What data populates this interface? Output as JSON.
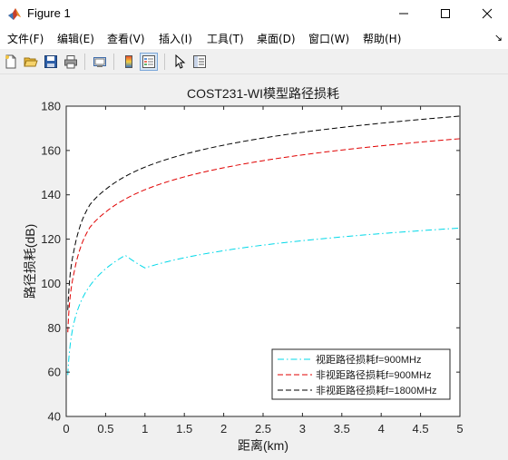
{
  "window": {
    "title": "Figure 1"
  },
  "menu": {
    "items": [
      "文件(F)",
      "编辑(E)",
      "查看(V)",
      "插入(I)",
      "工具(T)",
      "桌面(D)",
      "窗口(W)",
      "帮助(H)"
    ],
    "extra": "↘"
  },
  "toolbar": {
    "buttons": [
      {
        "name": "new-figure",
        "icon": "new-file-icon"
      },
      {
        "name": "open-file",
        "icon": "folder-open-icon"
      },
      {
        "name": "save-figure",
        "icon": "save-icon"
      },
      {
        "name": "print-figure",
        "icon": "printer-icon"
      },
      {
        "name": "link-plot",
        "icon": "link-plot-icon"
      },
      {
        "name": "insert-colorbar",
        "icon": "colorbar-icon"
      },
      {
        "name": "insert-legend",
        "icon": "legend-icon"
      },
      {
        "name": "edit-plot",
        "icon": "pointer-icon"
      },
      {
        "name": "property-inspector",
        "icon": "property-inspector-icon"
      }
    ]
  },
  "chart_data": {
    "type": "line",
    "title": "COST231-WI模型路径损耗",
    "xlabel": "距离(km)",
    "ylabel": "路径损耗(dB)",
    "xlim": [
      0,
      5
    ],
    "ylim": [
      40,
      180
    ],
    "xticks": [
      0,
      0.5,
      1,
      1.5,
      2,
      2.5,
      3,
      3.5,
      4,
      4.5,
      5
    ],
    "xtick_labels": [
      "0",
      "0.5",
      "1",
      "1.5",
      "2",
      "2.5",
      "3",
      "3.5",
      "4",
      "4.5",
      "5"
    ],
    "yticks": [
      40,
      60,
      80,
      100,
      120,
      140,
      160,
      180
    ],
    "ytick_labels": [
      "40",
      "60",
      "80",
      "100",
      "120",
      "140",
      "160",
      "180"
    ],
    "grid": false,
    "legend_position": "bottom-right",
    "x": [
      0.02,
      0.05,
      0.1,
      0.2,
      0.3,
      0.5,
      0.75,
      1,
      1.5,
      2,
      2.5,
      3,
      3.5,
      4,
      4.5,
      5
    ],
    "series": [
      {
        "name": "视距路径损耗f=900MHz",
        "color": "#00d8e8",
        "style": "dashdot",
        "values": [
          58.7,
          72.2,
          82.5,
          92.9,
          98.9,
          106.6,
          112.7,
          107.0,
          111.6,
          114.8,
          117.3,
          119.3,
          121.0,
          122.5,
          123.8,
          125.0
        ]
      },
      {
        "name": "非视距路径损耗f=900MHz",
        "color": "#e00000",
        "style": "dashed",
        "values": [
          78.0,
          94.1,
          105.0,
          118.1,
          125.3,
          132.2,
          138.1,
          142.3,
          148.1,
          152.2,
          155.4,
          158.0,
          160.2,
          162.1,
          163.8,
          165.3
        ]
      },
      {
        "name": "非视距路径损耗f=1800MHz",
        "color": "#000000",
        "style": "dashed",
        "values": [
          88.0,
          104.1,
          115.2,
          128.3,
          135.5,
          142.4,
          148.3,
          152.5,
          158.3,
          162.4,
          165.6,
          168.2,
          170.4,
          172.3,
          174.0,
          175.5
        ]
      }
    ]
  }
}
